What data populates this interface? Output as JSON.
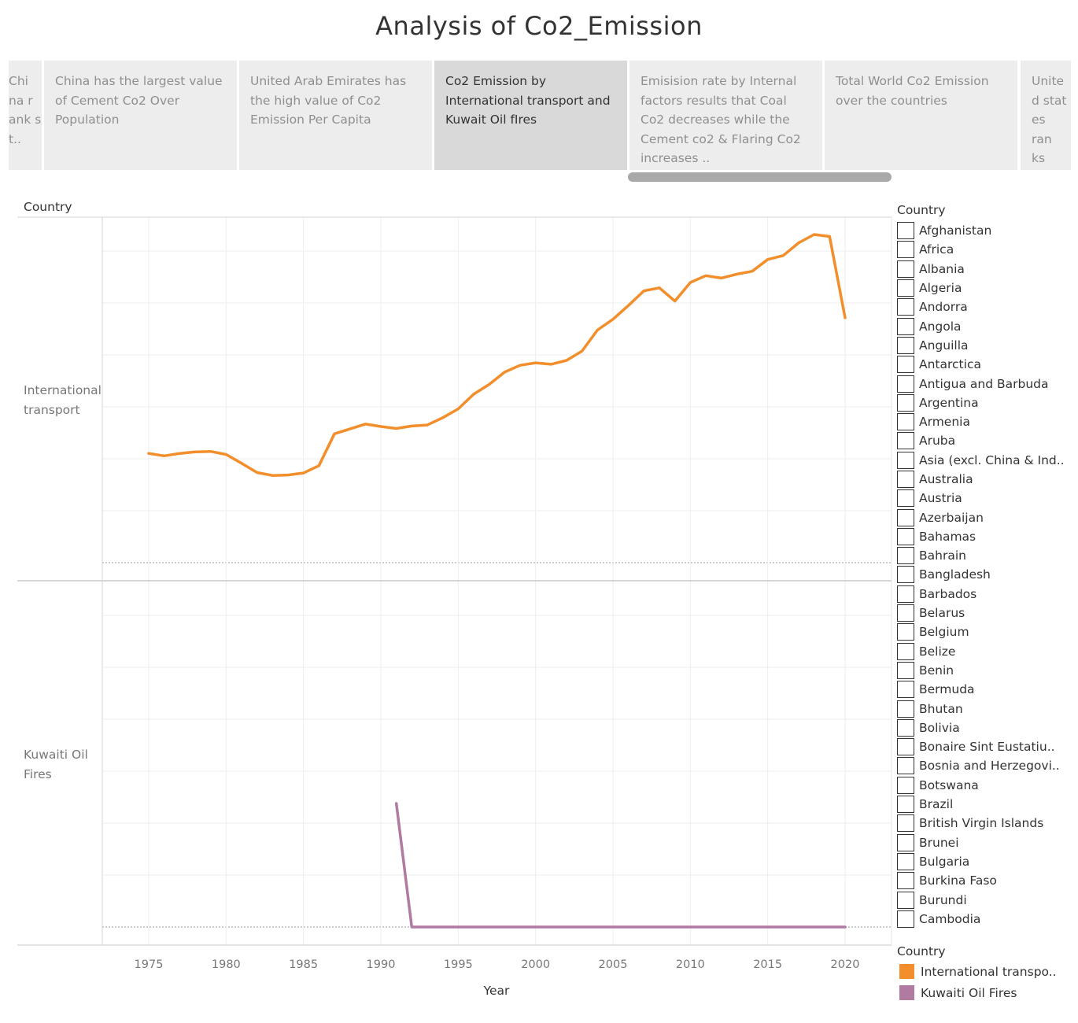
{
  "page_title": "Analysis of Co2_Emission",
  "story_points": [
    {
      "text": "Chi na r ank s t..",
      "active": false
    },
    {
      "text": "China has the largest value of Cement Co2 Over Population",
      "active": false
    },
    {
      "text": "United Arab Emirates has the high value  of Co2 Emission Per Capita",
      "active": false
    },
    {
      "text": "Co2 Emission by International transport and Kuwait Oil  fIres",
      "active": true
    },
    {
      "text": "Emisision rate by Internal factors results that Coal Co2 decreases while the Cement co2 & Flaring Co2 increases ..",
      "active": false
    },
    {
      "text": "Total World Co2 Emission over the countries",
      "active": false
    },
    {
      "text": "Unite d stat es ran ks th..",
      "active": false
    }
  ],
  "rows_header": "Country",
  "filter": {
    "title": "Country",
    "items": [
      "Afghanistan",
      "Africa",
      "Albania",
      "Algeria",
      "Andorra",
      "Angola",
      "Anguilla",
      "Antarctica",
      "Antigua and Barbuda",
      "Argentina",
      "Armenia",
      "Aruba",
      "Asia (excl. China & Ind..",
      "Australia",
      "Austria",
      "Azerbaijan",
      "Bahamas",
      "Bahrain",
      "Bangladesh",
      "Barbados",
      "Belarus",
      "Belgium",
      "Belize",
      "Benin",
      "Bermuda",
      "Bhutan",
      "Bolivia",
      "Bonaire Sint Eustatiu..",
      "Bosnia and Herzegovi..",
      "Botswana",
      "Brazil",
      "British Virgin Islands",
      "Brunei",
      "Bulgaria",
      "Burkina Faso",
      "Burundi",
      "Cambodia"
    ]
  },
  "legend": {
    "title": "Country",
    "items": [
      {
        "label": "International transpo..",
        "color": "#f28e2b"
      },
      {
        "label": "Kuwaiti Oil Fires",
        "color": "#b07aa1"
      }
    ]
  },
  "chart_data": {
    "type": "line",
    "xlabel": "Year",
    "x_ticks": [
      1975,
      1980,
      1985,
      1990,
      1995,
      2000,
      2005,
      2010,
      2015,
      2020
    ],
    "xlim": [
      1972,
      2023
    ],
    "grid": true,
    "panels": [
      {
        "row_label": "International transport",
        "color": "#f28e2b",
        "ylim": [
          0,
          67
        ],
        "x": [
          1975,
          1976,
          1977,
          1978,
          1979,
          1980,
          1981,
          1982,
          1983,
          1984,
          1985,
          1986,
          1987,
          1988,
          1989,
          1990,
          1991,
          1992,
          1993,
          1994,
          1995,
          1996,
          1997,
          1998,
          1999,
          2000,
          2001,
          2002,
          2003,
          2004,
          2005,
          2006,
          2007,
          2008,
          2009,
          2010,
          2011,
          2012,
          2013,
          2014,
          2015,
          2016,
          2017,
          2018,
          2019,
          2020
        ],
        "y": [
          22.3,
          21.8,
          22.3,
          22.6,
          22.7,
          22.1,
          20.3,
          18.4,
          17.8,
          17.9,
          18.3,
          19.8,
          26.3,
          27.3,
          28.3,
          27.8,
          27.4,
          27.9,
          28.1,
          29.6,
          31.4,
          34.4,
          36.4,
          38.9,
          40.3,
          40.8,
          40.5,
          41.3,
          43.2,
          47.5,
          49.7,
          52.5,
          55.5,
          56.1,
          53.4,
          57.2,
          58.6,
          58.1,
          58.9,
          59.5,
          61.9,
          62.7,
          65.3,
          67.0,
          66.6,
          50.0
        ]
      },
      {
        "row_label": "Kuwaiti Oil Fires",
        "color": "#b07aa1",
        "ylim": [
          0,
          24
        ],
        "x": [
          1991,
          1992,
          1993,
          1994,
          1995,
          1996,
          1997,
          1998,
          1999,
          2000,
          2001,
          2002,
          2003,
          2004,
          2005,
          2006,
          2007,
          2008,
          2009,
          2010,
          2011,
          2012,
          2013,
          2014,
          2015,
          2016,
          2017,
          2018,
          2019,
          2020
        ],
        "y": [
          24,
          0,
          0,
          0,
          0,
          0,
          0,
          0,
          0,
          0,
          0,
          0,
          0,
          0,
          0,
          0,
          0,
          0,
          0,
          0,
          0,
          0,
          0,
          0,
          0,
          0,
          0,
          0,
          0,
          0
        ]
      }
    ]
  }
}
